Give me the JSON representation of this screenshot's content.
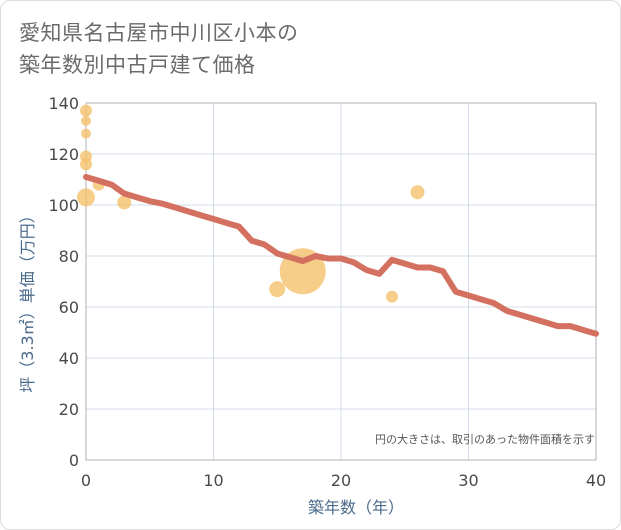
{
  "title_line1": "愛知県名古屋市中川区小本の",
  "title_line2": "築年数別中古戸建て価格",
  "colors": {
    "line": "#d4705f",
    "bubble": "#f5c26b",
    "grid": "#d0dce8",
    "plot_border": "#b0b0b0"
  },
  "chart_data": {
    "type": "scatter",
    "xlabel": "築年数（年）",
    "ylabel": "坪（3.3㎡）単価（万円）",
    "xlim": [
      0,
      40
    ],
    "ylim": [
      0,
      140
    ],
    "xticks": [
      0,
      10,
      20,
      30,
      40
    ],
    "yticks": [
      0,
      20,
      40,
      60,
      80,
      100,
      120,
      140
    ],
    "note": "円の大きさは、取引のあった物件面積を示す",
    "trend_line": {
      "x": [
        0,
        1,
        2,
        3,
        4,
        5,
        6,
        7,
        8,
        9,
        10,
        11,
        12,
        13,
        14,
        15,
        16,
        17,
        18,
        19,
        20,
        21,
        22,
        23,
        24,
        25,
        26,
        27,
        28,
        29,
        30,
        31,
        32,
        33,
        34,
        35,
        36,
        37,
        38,
        39,
        40
      ],
      "y": [
        111,
        109.5,
        108,
        104.5,
        103,
        101.5,
        100.5,
        99,
        97.5,
        96,
        94.5,
        93,
        91.5,
        86,
        84.5,
        81,
        79.5,
        78,
        80,
        79,
        79,
        77.5,
        74.5,
        73,
        78.5,
        77,
        75.5,
        75.5,
        74,
        66,
        64.5,
        63,
        61.5,
        58.5,
        57,
        55.5,
        54,
        52.5,
        52.5,
        51,
        49.5
      ]
    },
    "bubbles": [
      {
        "x": 0,
        "y": 137,
        "size": 6
      },
      {
        "x": 0,
        "y": 133,
        "size": 5
      },
      {
        "x": 0,
        "y": 128,
        "size": 5
      },
      {
        "x": 0,
        "y": 119,
        "size": 6
      },
      {
        "x": 0,
        "y": 116,
        "size": 6
      },
      {
        "x": 0,
        "y": 103,
        "size": 9
      },
      {
        "x": 1,
        "y": 108,
        "size": 6
      },
      {
        "x": 3,
        "y": 101,
        "size": 7
      },
      {
        "x": 15,
        "y": 67,
        "size": 8
      },
      {
        "x": 17,
        "y": 74,
        "size": 23
      },
      {
        "x": 24,
        "y": 64,
        "size": 6
      },
      {
        "x": 26,
        "y": 105,
        "size": 7
      }
    ]
  }
}
